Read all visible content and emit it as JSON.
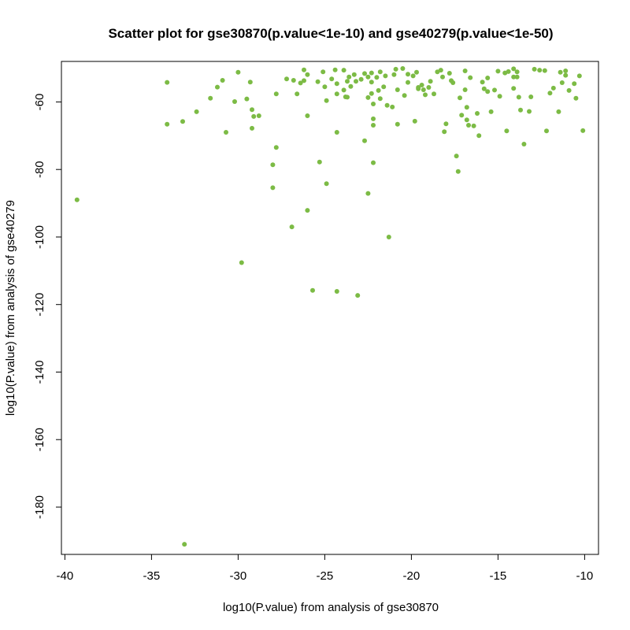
{
  "chart_data": {
    "type": "scatter",
    "title": "Scatter plot for gse30870(p.value<1e-10) and gse40279(p.value<1e-50)",
    "xlabel": "log10(P.value) from analysis of gse30870",
    "ylabel": "log10(P.value) from analysis of gse40279",
    "xlim": [
      -40.2,
      -9.2
    ],
    "ylim": [
      -194,
      -48
    ],
    "xticks": [
      -40,
      -35,
      -30,
      -25,
      -20,
      -15,
      -10
    ],
    "yticks": [
      -60,
      -80,
      -100,
      -120,
      -140,
      -160,
      -180
    ],
    "grid": false,
    "legend": "none",
    "point_color": "#7cbb45",
    "points": [
      [
        -39.3,
        -89
      ],
      [
        -34.1,
        -54.2
      ],
      [
        -34.1,
        -66.6
      ],
      [
        -33.2,
        -65.8
      ],
      [
        -33.1,
        -191
      ],
      [
        -32.4,
        -62.9
      ],
      [
        -31.6,
        -58.9
      ],
      [
        -31.2,
        -55.6
      ],
      [
        -30.9,
        -53.6
      ],
      [
        -30.7,
        -69
      ],
      [
        -30.2,
        -59.9
      ],
      [
        -30,
        -51.2
      ],
      [
        -29.8,
        -107.6
      ],
      [
        -29.5,
        -59.1
      ],
      [
        -29.3,
        -54.1
      ],
      [
        -29.2,
        -62.3
      ],
      [
        -29.1,
        -64.3
      ],
      [
        -29.2,
        -67.8
      ],
      [
        -28.8,
        -64.1
      ],
      [
        -28,
        -78.6
      ],
      [
        -28,
        -85.4
      ],
      [
        -27.8,
        -73.5
      ],
      [
        -27.8,
        -57.6
      ],
      [
        -27.2,
        -53.2
      ],
      [
        -26.9,
        -97
      ],
      [
        -26.6,
        -57.6
      ],
      [
        -26.4,
        -54.4
      ],
      [
        -26.2,
        -50.5
      ],
      [
        -26.2,
        -53.7
      ],
      [
        -26,
        -51.9
      ],
      [
        -26,
        -64.1
      ],
      [
        -26,
        -92.1
      ],
      [
        -25.7,
        -115.8
      ],
      [
        -25.4,
        -54
      ],
      [
        -25.3,
        -77.8
      ],
      [
        -25.1,
        -51.1
      ],
      [
        -25,
        -55.5
      ],
      [
        -24.9,
        -59.6
      ],
      [
        -24.9,
        -84.2
      ],
      [
        -24.6,
        -53.2
      ],
      [
        -24.4,
        -50.5
      ],
      [
        -24.3,
        -54.6
      ],
      [
        -24.3,
        -57.6
      ],
      [
        -24.3,
        -69
      ],
      [
        -24.3,
        -116.1
      ],
      [
        -23.9,
        -50.6
      ],
      [
        -23.9,
        -56.5
      ],
      [
        -23.8,
        -58.5
      ],
      [
        -23.7,
        -53.9
      ],
      [
        -23.7,
        -58.6
      ],
      [
        -23.6,
        -52.6
      ],
      [
        -23.5,
        -55.4
      ],
      [
        -23.3,
        -51.9
      ],
      [
        -23.2,
        -53.9
      ],
      [
        -23.1,
        -117.3
      ],
      [
        -22.9,
        -53.3
      ],
      [
        -22.7,
        -51.6
      ],
      [
        -22.7,
        -71.5
      ],
      [
        -22.5,
        -52.6
      ],
      [
        -22.5,
        -58.7
      ],
      [
        -22.5,
        -87.1
      ],
      [
        -22.3,
        -51.4
      ],
      [
        -22.3,
        -54.1
      ],
      [
        -22.3,
        -57.5
      ],
      [
        -22.2,
        -60.6
      ],
      [
        -22.2,
        -65
      ],
      [
        -22.2,
        -66.9
      ],
      [
        -22.2,
        -78
      ],
      [
        -22,
        -52.7
      ],
      [
        -21.9,
        -56.6
      ],
      [
        -21.8,
        -51.1
      ],
      [
        -21.8,
        -59
      ],
      [
        -21.6,
        -55.5
      ],
      [
        -21.5,
        -52.3
      ],
      [
        -21.4,
        -61
      ],
      [
        -21.3,
        -100
      ],
      [
        -21.1,
        -61.5
      ],
      [
        -21,
        -51.9
      ],
      [
        -20.9,
        -50.3
      ],
      [
        -20.8,
        -56.4
      ],
      [
        -20.8,
        -66.6
      ],
      [
        -20.5,
        -50.1
      ],
      [
        -20.4,
        -58.1
      ],
      [
        -20.2,
        -54.2
      ],
      [
        -19.9,
        -52.3
      ],
      [
        -19.8,
        -65.7
      ],
      [
        -19.7,
        -51.2
      ],
      [
        -19.6,
        -55.7
      ],
      [
        -19.6,
        -56.1
      ],
      [
        -19.4,
        -55
      ],
      [
        -19.3,
        -56.4
      ],
      [
        -19.2,
        -57.9
      ],
      [
        -19,
        -55.7
      ],
      [
        -18.9,
        -53.9
      ],
      [
        -18.7,
        -57.6
      ],
      [
        -18.5,
        -51.1
      ],
      [
        -18.3,
        -50.6
      ],
      [
        -18.2,
        -52.6
      ],
      [
        -18.1,
        -68.8
      ],
      [
        -18,
        -66.5
      ],
      [
        -17.8,
        -51.5
      ],
      [
        -17.7,
        -53.7
      ],
      [
        -17.6,
        -54.3
      ],
      [
        -17.4,
        -76
      ],
      [
        -17.3,
        -80.6
      ],
      [
        -17.1,
        -63.9
      ],
      [
        -16.9,
        -50.8
      ],
      [
        -16.9,
        -56.4
      ],
      [
        -16.8,
        -61.6
      ],
      [
        -16.8,
        -65.3
      ],
      [
        -16.7,
        -66.9
      ],
      [
        -16.6,
        -52.8
      ],
      [
        -16.4,
        -67.1
      ],
      [
        -16.2,
        -63.4
      ],
      [
        -16.1,
        -70
      ],
      [
        -15.9,
        -54.1
      ],
      [
        -15.8,
        -56.1
      ],
      [
        -15.6,
        -52.9
      ],
      [
        -15.6,
        -56.9
      ],
      [
        -15.4,
        -62.9
      ],
      [
        -15.2,
        -56.5
      ],
      [
        -15,
        -50.9
      ],
      [
        -14.6,
        -51.4
      ],
      [
        -14.5,
        -68.6
      ],
      [
        -14.4,
        -51
      ],
      [
        -14.1,
        -50.2
      ],
      [
        -14.1,
        -52.6
      ],
      [
        -14.1,
        -56
      ],
      [
        -13.9,
        -51.1
      ],
      [
        -13.9,
        -52.6
      ],
      [
        -13.8,
        -58.6
      ],
      [
        -13.7,
        -62.4
      ],
      [
        -13.5,
        -72.5
      ],
      [
        -13.1,
        -58.5
      ],
      [
        -12.9,
        -50.3
      ],
      [
        -12.6,
        -50.6
      ],
      [
        -12.3,
        -50.7
      ],
      [
        -12.2,
        -68.6
      ],
      [
        -12,
        -57.4
      ],
      [
        -11.8,
        -55.9
      ],
      [
        -11.5,
        -62.9
      ],
      [
        -11.4,
        -51.2
      ],
      [
        -11.3,
        -54.3
      ],
      [
        -11.1,
        -52.1
      ],
      [
        -11.1,
        -50.8
      ],
      [
        -10.9,
        -56.6
      ],
      [
        -10.6,
        -54.6
      ],
      [
        -10.5,
        -58.9
      ],
      [
        -10.3,
        -52.3
      ],
      [
        -10.1,
        -68.5
      ],
      [
        -13.2,
        -62.8
      ],
      [
        -14.9,
        -58.3
      ],
      [
        -26.8,
        -53.6
      ],
      [
        -20.2,
        -51.8
      ],
      [
        -17.2,
        -58.8
      ]
    ]
  }
}
